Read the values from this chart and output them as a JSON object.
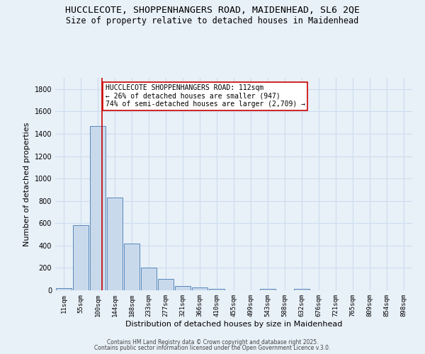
{
  "title1": "HUCCLECOTE, SHOPPENHANGERS ROAD, MAIDENHEAD, SL6 2QE",
  "title2": "Size of property relative to detached houses in Maidenhead",
  "xlabel": "Distribution of detached houses by size in Maidenhead",
  "ylabel": "Number of detached properties",
  "bar_labels": [
    "11sqm",
    "55sqm",
    "100sqm",
    "144sqm",
    "188sqm",
    "233sqm",
    "277sqm",
    "321sqm",
    "366sqm",
    "410sqm",
    "455sqm",
    "499sqm",
    "543sqm",
    "588sqm",
    "632sqm",
    "676sqm",
    "721sqm",
    "765sqm",
    "809sqm",
    "854sqm",
    "898sqm"
  ],
  "bar_heights": [
    20,
    580,
    1470,
    830,
    420,
    200,
    100,
    35,
    25,
    15,
    0,
    0,
    15,
    0,
    15,
    0,
    0,
    0,
    0,
    0,
    0
  ],
  "bar_color": "#c9d9ec",
  "bar_edge_color": "#5588bb",
  "ylim": [
    0,
    1900
  ],
  "yticks": [
    0,
    200,
    400,
    600,
    800,
    1000,
    1200,
    1400,
    1600,
    1800
  ],
  "vline_x": 2.27,
  "vline_color": "#cc0000",
  "annotation_text": "HUCCLECOTE SHOPPENHANGERS ROAD: 112sqm\n← 26% of detached houses are smaller (947)\n74% of semi-detached houses are larger (2,709) →",
  "annotation_box_color": "#ffffff",
  "annotation_box_edge": "#cc0000",
  "footnote1": "Contains HM Land Registry data © Crown copyright and database right 2025.",
  "footnote2": "Contains public sector information licensed under the Open Government Licence v.3.0.",
  "bg_color": "#e8f0f8",
  "grid_color": "#ccddee",
  "title_fontsize": 9.5,
  "subtitle_fontsize": 8.5,
  "tick_fontsize": 6.5,
  "ylabel_fontsize": 8,
  "xlabel_fontsize": 8,
  "footnote_fontsize": 5.5,
  "annotation_fontsize": 7
}
